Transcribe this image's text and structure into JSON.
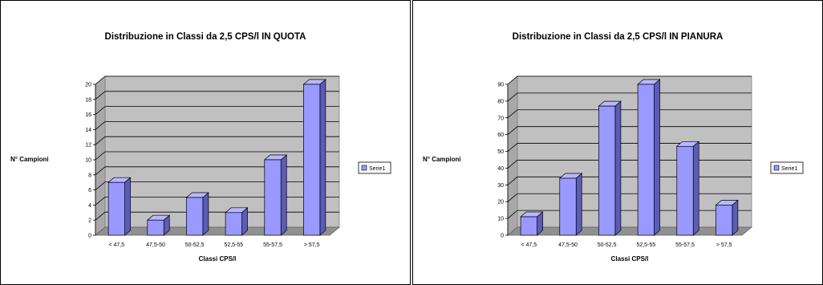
{
  "chart_data": [
    {
      "type": "bar",
      "title": "Distribuzione in Classi da 2,5 CPS/l IN QUOTA",
      "xlabel": "Classi CPS/l",
      "ylabel": "N° Campioni",
      "categories": [
        "< 47,5",
        "47,5-50",
        "50-52,5",
        "52,5-55",
        "55-57,5",
        "> 57,5"
      ],
      "series": [
        {
          "name": "Serie1",
          "values": [
            7,
            2,
            5,
            3,
            10,
            20
          ]
        }
      ],
      "ylim": [
        0,
        20
      ],
      "ytick_step": 2,
      "grid": true,
      "legend": "right",
      "colors": {
        "bar": "#9999ff",
        "plot_bg": "#c0c0c0"
      }
    },
    {
      "type": "bar",
      "title": "Distribuzione in Classi da 2,5 CPS/l IN PIANURA",
      "xlabel": "Classi CPS/l",
      "ylabel": "N° Campioni",
      "categories": [
        "< 47,5",
        "47,5-50",
        "50-52,5",
        "52,5-55",
        "55-57,5",
        "> 57,5"
      ],
      "series": [
        {
          "name": "Serie1",
          "values": [
            11,
            34,
            77,
            90,
            53,
            18
          ]
        }
      ],
      "ylim": [
        0,
        90
      ],
      "ytick_step": 10,
      "grid": true,
      "legend": "right",
      "colors": {
        "bar": "#9999ff",
        "plot_bg": "#c0c0c0"
      }
    }
  ]
}
